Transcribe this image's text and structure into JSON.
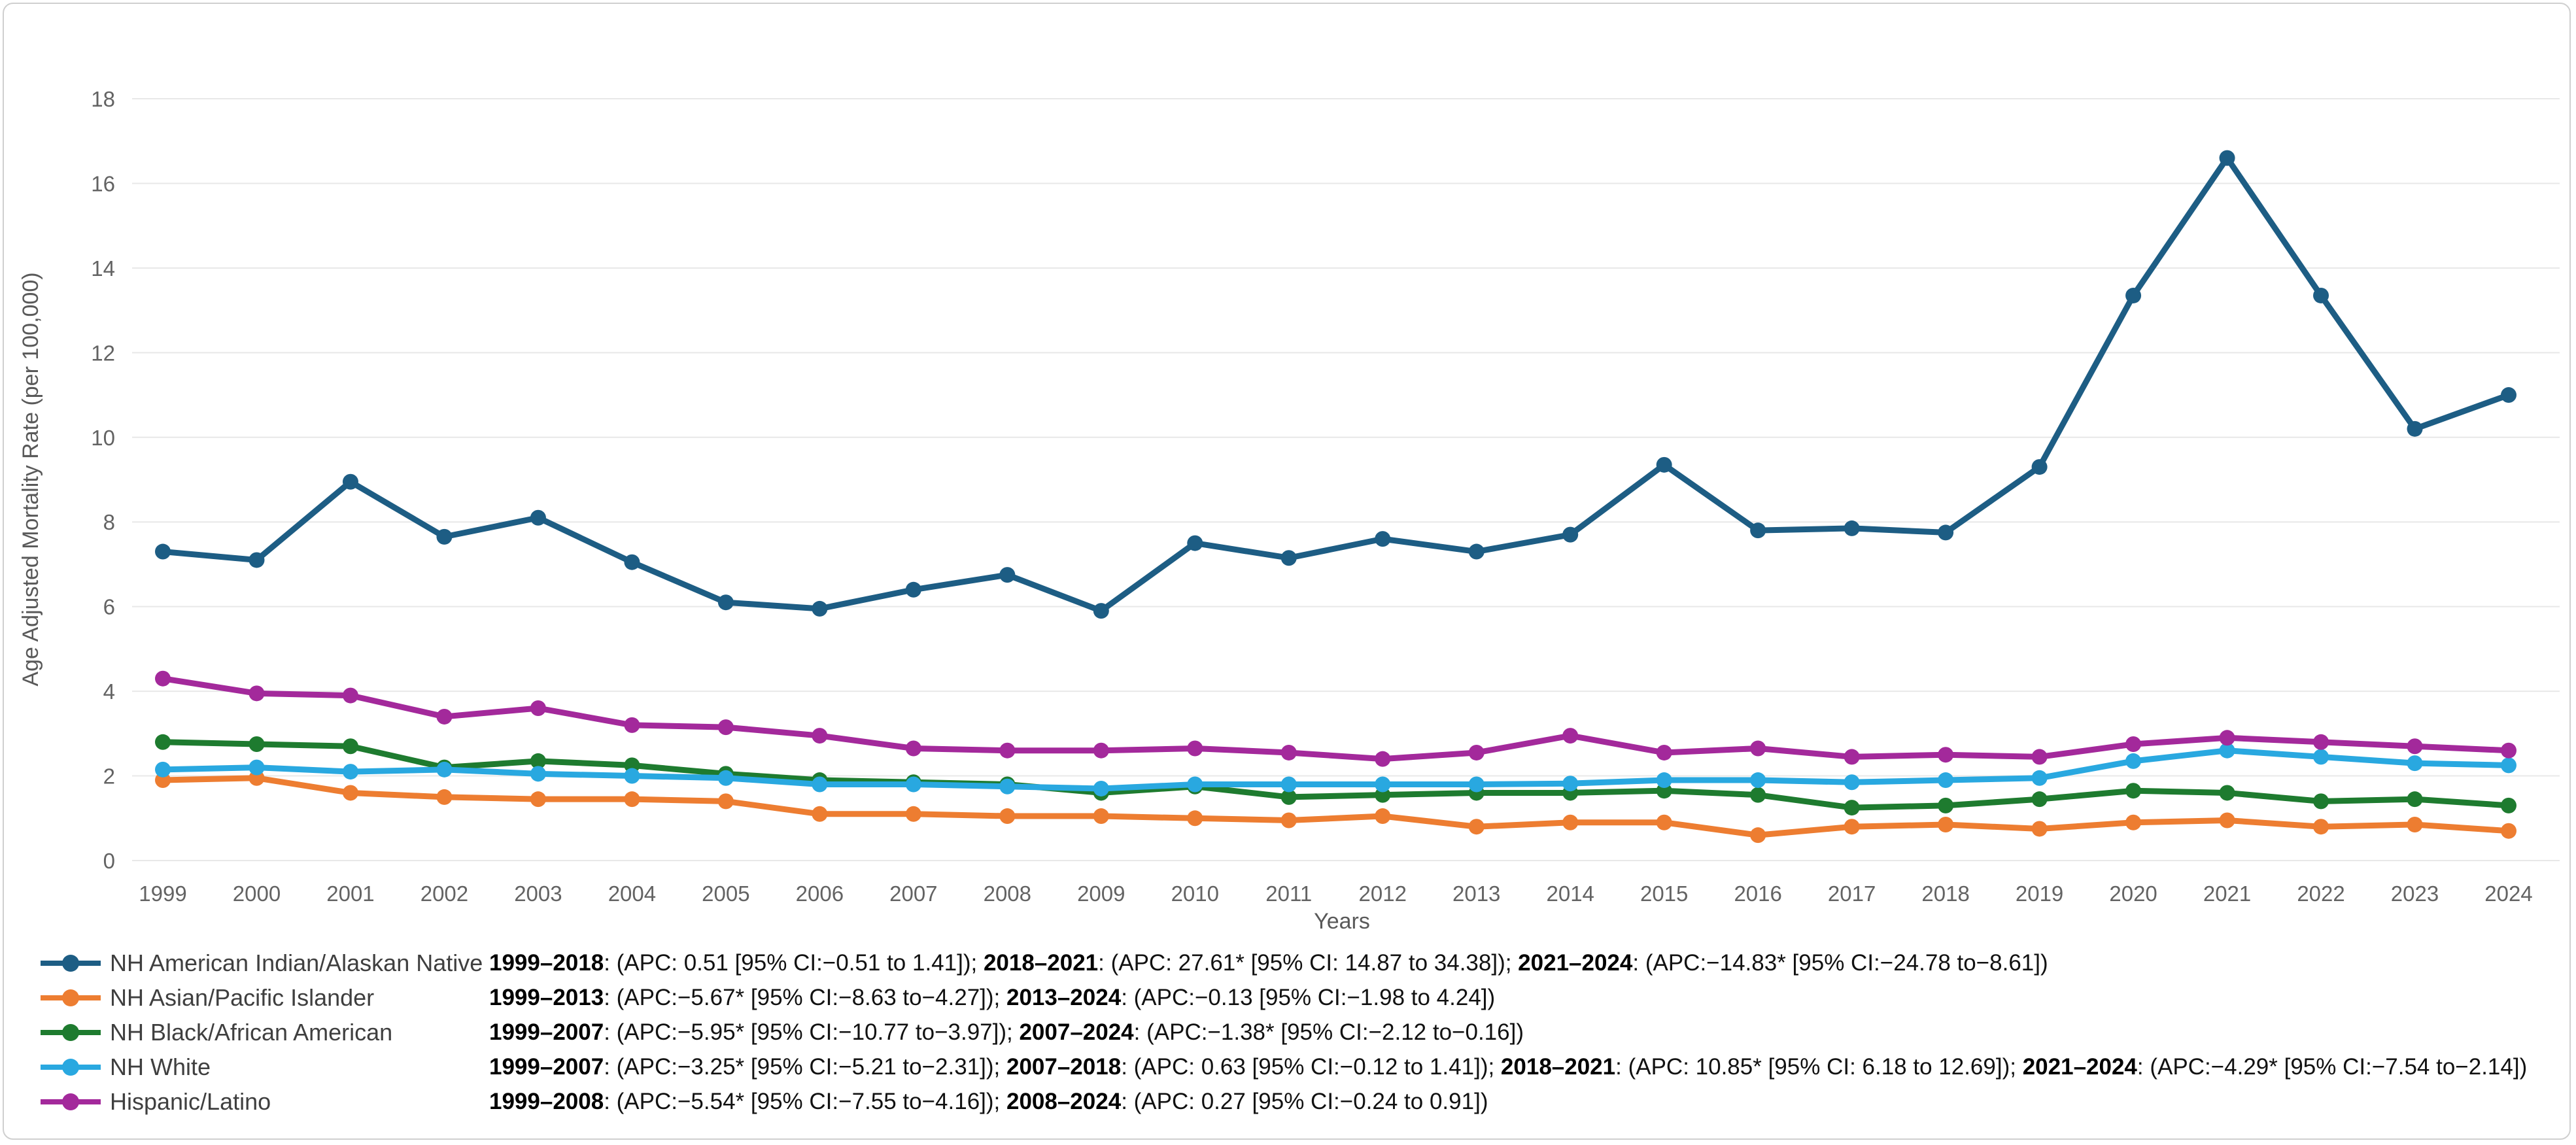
{
  "chart_data": {
    "type": "line",
    "title": "",
    "xlabel": "Years",
    "ylabel": "Age Adjusted Mortality Rate (per 100,000)",
    "ylim": [
      0,
      18
    ],
    "ytick_step": 2,
    "grid": true,
    "legend_position": "bottom-left",
    "x": [
      1999,
      2000,
      2001,
      2002,
      2003,
      2004,
      2005,
      2006,
      2007,
      2008,
      2009,
      2010,
      2011,
      2012,
      2013,
      2014,
      2015,
      2016,
      2017,
      2018,
      2019,
      2020,
      2021,
      2022,
      2023,
      2024
    ],
    "series": [
      {
        "name": "NH American Indian/Alaskan Native",
        "color": "#1d5d84",
        "values": [
          7.3,
          7.1,
          8.95,
          7.65,
          8.1,
          7.05,
          6.1,
          5.95,
          6.4,
          6.75,
          5.9,
          7.5,
          7.15,
          7.6,
          7.3,
          7.7,
          9.35,
          7.8,
          7.85,
          7.75,
          9.3,
          13.35,
          16.6,
          13.35,
          10.2,
          11.0
        ]
      },
      {
        "name": "NH Asian/Pacific Islander",
        "color": "#ed7d31",
        "values": [
          1.9,
          1.95,
          1.6,
          1.5,
          1.45,
          1.45,
          1.4,
          1.1,
          1.1,
          1.05,
          1.05,
          1.0,
          0.95,
          1.05,
          0.8,
          0.9,
          0.9,
          0.6,
          0.8,
          0.85,
          0.75,
          0.9,
          0.95,
          0.8,
          0.85,
          0.7
        ]
      },
      {
        "name": "NH Black/African American",
        "color": "#1e7b2f",
        "values": [
          2.8,
          2.75,
          2.7,
          2.2,
          2.35,
          2.25,
          2.05,
          1.9,
          1.85,
          1.8,
          1.6,
          1.75,
          1.5,
          1.55,
          1.6,
          1.6,
          1.65,
          1.55,
          1.25,
          1.3,
          1.45,
          1.65,
          1.6,
          1.4,
          1.45,
          1.3
        ]
      },
      {
        "name": "NH White",
        "color": "#29a8e0",
        "values": [
          2.15,
          2.2,
          2.1,
          2.15,
          2.05,
          2.0,
          1.95,
          1.8,
          1.8,
          1.75,
          1.7,
          1.8,
          1.8,
          1.8,
          1.8,
          1.82,
          1.9,
          1.9,
          1.85,
          1.9,
          1.95,
          2.35,
          2.6,
          2.45,
          2.3,
          2.25
        ]
      },
      {
        "name": "Hispanic/Latino",
        "color": "#a3299b",
        "values": [
          4.3,
          3.95,
          3.9,
          3.4,
          3.6,
          3.2,
          3.15,
          2.95,
          2.65,
          2.6,
          2.6,
          2.65,
          2.55,
          2.4,
          2.55,
          2.95,
          2.55,
          2.65,
          2.45,
          2.5,
          2.45,
          2.75,
          2.9,
          2.8,
          2.7,
          2.6
        ]
      }
    ]
  },
  "axes": {
    "ylabel": "Age Adjusted Mortality Rate (per 100,000)",
    "xlabel": "Years",
    "yticks": [
      0,
      2,
      4,
      6,
      8,
      10,
      12,
      14,
      16,
      18
    ]
  },
  "legend_rows": [
    {
      "label": "NH American Indian/Alaskan Native",
      "color": "#1d5d84",
      "annotation": [
        {
          "text": "1999–2018",
          "bold": true
        },
        {
          "text": ": (APC: 0.51 [95% CI:−0.51 to 1.41]); ",
          "bold": false
        },
        {
          "text": "2018–2021",
          "bold": true
        },
        {
          "text": ": (APC: 27.61* [95% CI: 14.87 to 34.38]); ",
          "bold": false
        },
        {
          "text": "2021–2024",
          "bold": true
        },
        {
          "text": ": (APC:−14.83* [95% CI:−24.78 to−8.61])",
          "bold": false
        }
      ]
    },
    {
      "label": "NH Asian/Pacific Islander",
      "color": "#ed7d31",
      "annotation": [
        {
          "text": "1999–2013",
          "bold": true
        },
        {
          "text": ": (APC:−5.67* [95% CI:−8.63 to−4.27]); ",
          "bold": false
        },
        {
          "text": "2013–2024",
          "bold": true
        },
        {
          "text": ": (APC:−0.13 [95% CI:−1.98 to 4.24])",
          "bold": false
        }
      ]
    },
    {
      "label": "NH Black/African American",
      "color": "#1e7b2f",
      "annotation": [
        {
          "text": "1999–2007",
          "bold": true
        },
        {
          "text": ": (APC:−5.95* [95% CI:−10.77 to−3.97]); ",
          "bold": false
        },
        {
          "text": "2007–2024",
          "bold": true
        },
        {
          "text": ": (APC:−1.38* [95% CI:−2.12 to−0.16])",
          "bold": false
        }
      ]
    },
    {
      "label": "NH White",
      "color": "#29a8e0",
      "annotation": [
        {
          "text": "1999–2007",
          "bold": true
        },
        {
          "text": ": (APC:−3.25* [95% CI:−5.21 to−2.31]); ",
          "bold": false
        },
        {
          "text": "2007–2018",
          "bold": true
        },
        {
          "text": ": (APC: 0.63 [95% CI:−0.12 to 1.41]); ",
          "bold": false
        },
        {
          "text": "2018–2021",
          "bold": true
        },
        {
          "text": ": (APC: 10.85* [95% CI: 6.18 to 12.69]);  ",
          "bold": false
        },
        {
          "text": "2021–2024",
          "bold": true
        },
        {
          "text": ": (APC:−4.29* [95% CI:−7.54 to−2.14])",
          "bold": false
        }
      ]
    },
    {
      "label": "Hispanic/Latino",
      "color": "#a3299b",
      "annotation": [
        {
          "text": "1999–2008",
          "bold": true
        },
        {
          "text": ": (APC:−5.54* [95% CI:−7.55 to−4.16]); ",
          "bold": false
        },
        {
          "text": "2008–2024",
          "bold": true
        },
        {
          "text": ": (APC: 0.27 [95% CI:−0.24 to 0.91])",
          "bold": false
        }
      ]
    }
  ],
  "colors": {
    "gridline": "#e8e8e8",
    "tick_text": "#636363",
    "axis_title_text": "#595959"
  }
}
